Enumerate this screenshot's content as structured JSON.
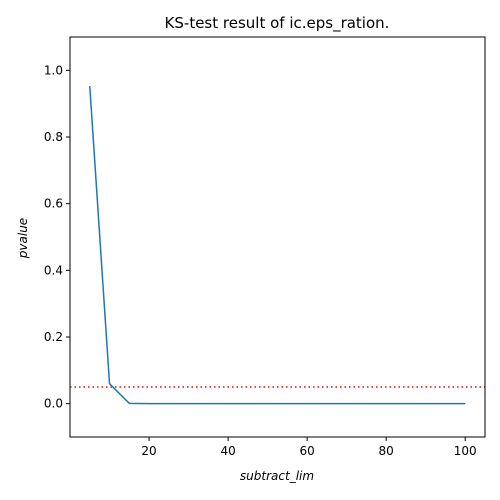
{
  "chart_data": {
    "type": "line",
    "title": "KS-test result of ic.eps_ration.",
    "xlabel": "subtract_lim",
    "ylabel": "pvalue",
    "xlim": [
      0,
      105
    ],
    "ylim": [
      -0.1,
      1.1
    ],
    "x_ticks": [
      20,
      40,
      60,
      80,
      100
    ],
    "y_ticks": [
      0.0,
      0.2,
      0.4,
      0.6,
      0.8,
      1.0
    ],
    "x_tick_labels": [
      "20",
      "40",
      "60",
      "80",
      "100"
    ],
    "y_tick_labels": [
      "0.0",
      "0.2",
      "0.4",
      "0.6",
      "0.8",
      "1.0"
    ],
    "grid": false,
    "series": [
      {
        "color": "#1f77b4",
        "x": [
          5,
          10,
          15,
          20,
          25,
          30,
          35,
          40,
          45,
          50,
          55,
          60,
          65,
          70,
          75,
          80,
          85,
          90,
          95,
          100
        ],
        "y": [
          0.953,
          0.06,
          0.001,
          0.0,
          0.0,
          0.0,
          0.0,
          0.0,
          0.0,
          0.0,
          0.0,
          0.0,
          0.0,
          0.0,
          0.0,
          0.0,
          0.0,
          0.0,
          0.0,
          0.0
        ]
      }
    ],
    "reference_line": {
      "orientation": "horizontal",
      "y": 0.05,
      "color": "#ff0000",
      "style": "dotted"
    }
  }
}
